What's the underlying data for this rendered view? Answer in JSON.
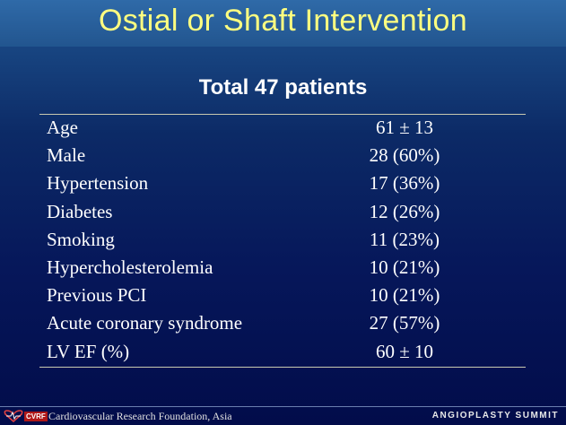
{
  "slide": {
    "title": "Ostial or Shaft Intervention",
    "subtitle": "Total 47 patients"
  },
  "table": {
    "rows": [
      {
        "label": "Age",
        "value": "61 ± 13"
      },
      {
        "label": "Male",
        "value": "28 (60%)"
      },
      {
        "label": "Hypertension",
        "value": "17 (36%)"
      },
      {
        "label": "Diabetes",
        "value": "12 (26%)"
      },
      {
        "label": "Smoking",
        "value": "11 (23%)"
      },
      {
        "label": "Hypercholesterolemia",
        "value": "10 (21%)"
      },
      {
        "label": "Previous PCI",
        "value": "10 (21%)"
      },
      {
        "label": "Acute coronary syndrome",
        "value": "27 (57%)"
      },
      {
        "label": "LV EF (%)",
        "value": "60 ± 10"
      }
    ]
  },
  "footer": {
    "logo_text": "CVRF",
    "organization": "Cardiovascular Research Foundation, Asia",
    "event": "ANGIOPLASTY SUMMIT"
  },
  "colors": {
    "title": "#ffff80",
    "text": "#ffffff",
    "background_top": "#1f4f8f",
    "background_bottom": "#020c4a",
    "rule": "#c9c9b0",
    "logo_accent": "#b01818"
  }
}
